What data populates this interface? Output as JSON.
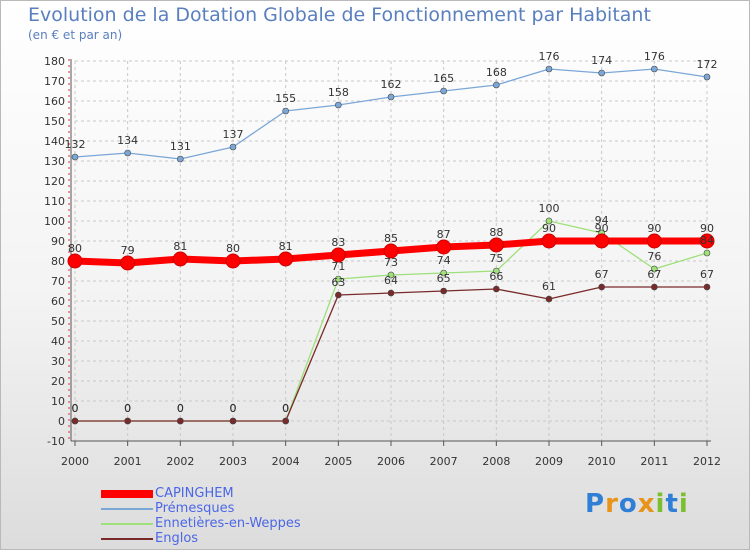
{
  "title": "Evolution de la Dotation Globale de Fonctionnement par Habitant",
  "subtitle": "(en € et par an)",
  "logo_text": "Proxiti",
  "colors": {
    "title": "#5a7fbe",
    "legend_text": "#4b67e6",
    "grid": "#c8c8c8",
    "axis": "#555555"
  },
  "chart_data": {
    "type": "line",
    "categories": [
      "2000",
      "2001",
      "2002",
      "2003",
      "2004",
      "2005",
      "2006",
      "2007",
      "2008",
      "2009",
      "2010",
      "2011",
      "2012"
    ],
    "ylim": [
      -10,
      180
    ],
    "y_ticks": [
      -10,
      0,
      10,
      20,
      30,
      40,
      50,
      60,
      70,
      80,
      90,
      100,
      110,
      120,
      130,
      140,
      150,
      160,
      170,
      180
    ],
    "grid": true,
    "legend_position": "bottom-left",
    "series": [
      {
        "name": "CAPINGHEM",
        "color": "#ff0000",
        "width": 7,
        "marker": 7,
        "labels": true,
        "values": [
          80,
          79,
          81,
          80,
          81,
          83,
          85,
          87,
          88,
          90,
          90,
          90,
          90
        ]
      },
      {
        "name": "Prémesques",
        "color": "#7ba7d7",
        "width": 1.3,
        "marker": 3,
        "labels": true,
        "values": [
          132,
          134,
          131,
          137,
          155,
          158,
          162,
          165,
          168,
          176,
          174,
          176,
          172
        ]
      },
      {
        "name": "Ennetières-en-Weppes",
        "color": "#9ee07a",
        "width": 1.3,
        "marker": 3,
        "labels": true,
        "values": [
          0,
          0,
          0,
          0,
          0,
          71,
          73,
          74,
          75,
          100,
          94,
          76,
          84
        ]
      },
      {
        "name": "Englos",
        "color": "#7a2a2a",
        "width": 1.3,
        "marker": 3,
        "labels": true,
        "values": [
          0,
          0,
          0,
          0,
          0,
          63,
          64,
          65,
          66,
          61,
          67,
          67,
          67
        ]
      }
    ]
  }
}
